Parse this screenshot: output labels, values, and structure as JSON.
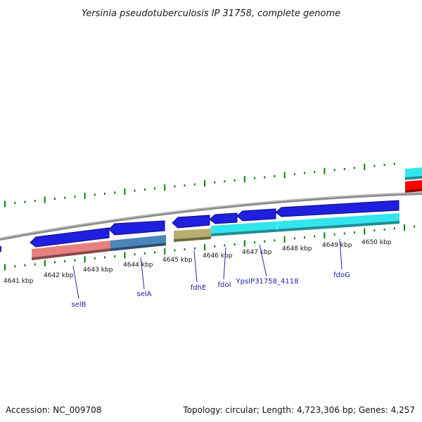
{
  "title": "Yersinia pseudotuberculosis IP 31758, complete genome",
  "accession_label": "Accession: NC_009708",
  "summary_label": "Topology: circular; Length: 4,723,306 bp; Genes: 4,257",
  "colors": {
    "backbone": "#8a8a8a",
    "ticks": "#0a7a0a",
    "forward_gene": "#1f1fe0",
    "label_line": "#2424b0",
    "selB_feature": "#e98080",
    "selA_feature": "#4a86b8",
    "fdhE_feature": "#b8ae70",
    "fdo_feature": "#33e6ee",
    "top_right_cyan": "#33e6ee",
    "top_right_red": "#ff0000"
  },
  "scale_labels": [
    {
      "text": "4641 kbp"
    },
    {
      "text": "4642 kbp"
    },
    {
      "text": "4643 kbp"
    },
    {
      "text": "4644 kbp"
    },
    {
      "text": "4645 kbp"
    },
    {
      "text": "4646 kbp"
    },
    {
      "text": "4647 kbp"
    },
    {
      "text": "4648 kbp"
    },
    {
      "text": "4649 kbp"
    },
    {
      "text": "4650 kbp"
    }
  ],
  "genes": [
    {
      "name": "selB"
    },
    {
      "name": "selA"
    },
    {
      "name": "fdhE"
    },
    {
      "name": "fdoI"
    },
    {
      "name": "YpsIP31758_4118"
    },
    {
      "name": "fdoG"
    }
  ]
}
